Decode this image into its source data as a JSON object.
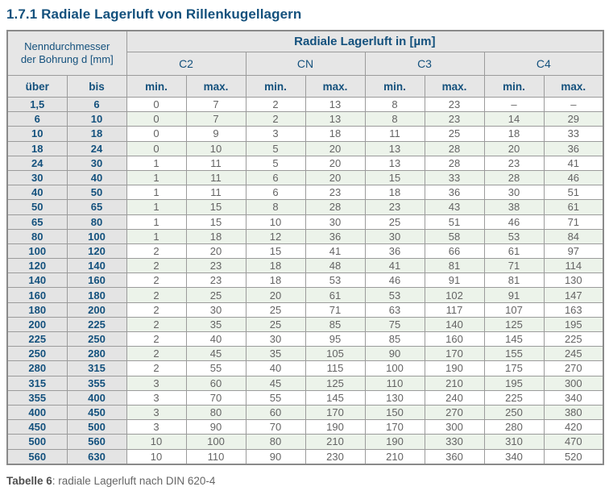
{
  "title": "1.7.1 Radiale Lagerluft von Rillenkugellagern",
  "colors": {
    "accent_navy": "#14517d",
    "header_bg": "#e6e6e6",
    "dim_column_bg": "#e4e4e4",
    "stripe_green": "#ecf3ea",
    "value_gray": "#646464",
    "border_gray": "#9b9b9b"
  },
  "table": {
    "bore_header_line1": "Nenndurchmesser",
    "bore_header_line2": "der Bohrung d [mm]",
    "group_header": "Radiale Lagerluft in [µm]",
    "class_labels": [
      "C2",
      "CN",
      "C3",
      "C4"
    ],
    "sub_headers": {
      "over": "über",
      "to": "bis",
      "min": "min.",
      "max": "max."
    },
    "rows": [
      [
        "1,5",
        "6",
        "0",
        "7",
        "2",
        "13",
        "8",
        "23",
        "–",
        "–"
      ],
      [
        "6",
        "10",
        "0",
        "7",
        "2",
        "13",
        "8",
        "23",
        "14",
        "29"
      ],
      [
        "10",
        "18",
        "0",
        "9",
        "3",
        "18",
        "11",
        "25",
        "18",
        "33"
      ],
      [
        "18",
        "24",
        "0",
        "10",
        "5",
        "20",
        "13",
        "28",
        "20",
        "36"
      ],
      [
        "24",
        "30",
        "1",
        "11",
        "5",
        "20",
        "13",
        "28",
        "23",
        "41"
      ],
      [
        "30",
        "40",
        "1",
        "11",
        "6",
        "20",
        "15",
        "33",
        "28",
        "46"
      ],
      [
        "40",
        "50",
        "1",
        "11",
        "6",
        "23",
        "18",
        "36",
        "30",
        "51"
      ],
      [
        "50",
        "65",
        "1",
        "15",
        "8",
        "28",
        "23",
        "43",
        "38",
        "61"
      ],
      [
        "65",
        "80",
        "1",
        "15",
        "10",
        "30",
        "25",
        "51",
        "46",
        "71"
      ],
      [
        "80",
        "100",
        "1",
        "18",
        "12",
        "36",
        "30",
        "58",
        "53",
        "84"
      ],
      [
        "100",
        "120",
        "2",
        "20",
        "15",
        "41",
        "36",
        "66",
        "61",
        "97"
      ],
      [
        "120",
        "140",
        "2",
        "23",
        "18",
        "48",
        "41",
        "81",
        "71",
        "114"
      ],
      [
        "140",
        "160",
        "2",
        "23",
        "18",
        "53",
        "46",
        "91",
        "81",
        "130"
      ],
      [
        "160",
        "180",
        "2",
        "25",
        "20",
        "61",
        "53",
        "102",
        "91",
        "147"
      ],
      [
        "180",
        "200",
        "2",
        "30",
        "25",
        "71",
        "63",
        "117",
        "107",
        "163"
      ],
      [
        "200",
        "225",
        "2",
        "35",
        "25",
        "85",
        "75",
        "140",
        "125",
        "195"
      ],
      [
        "225",
        "250",
        "2",
        "40",
        "30",
        "95",
        "85",
        "160",
        "145",
        "225"
      ],
      [
        "250",
        "280",
        "2",
        "45",
        "35",
        "105",
        "90",
        "170",
        "155",
        "245"
      ],
      [
        "280",
        "315",
        "2",
        "55",
        "40",
        "115",
        "100",
        "190",
        "175",
        "270"
      ],
      [
        "315",
        "355",
        "3",
        "60",
        "45",
        "125",
        "110",
        "210",
        "195",
        "300"
      ],
      [
        "355",
        "400",
        "3",
        "70",
        "55",
        "145",
        "130",
        "240",
        "225",
        "340"
      ],
      [
        "400",
        "450",
        "3",
        "80",
        "60",
        "170",
        "150",
        "270",
        "250",
        "380"
      ],
      [
        "450",
        "500",
        "3",
        "90",
        "70",
        "190",
        "170",
        "300",
        "280",
        "420"
      ],
      [
        "500",
        "560",
        "10",
        "100",
        "80",
        "210",
        "190",
        "330",
        "310",
        "470"
      ],
      [
        "560",
        "630",
        "10",
        "110",
        "90",
        "230",
        "210",
        "360",
        "340",
        "520"
      ]
    ]
  },
  "caption": {
    "label": "Tabelle 6",
    "text": ": radiale Lagerluft nach DIN 620-4"
  }
}
